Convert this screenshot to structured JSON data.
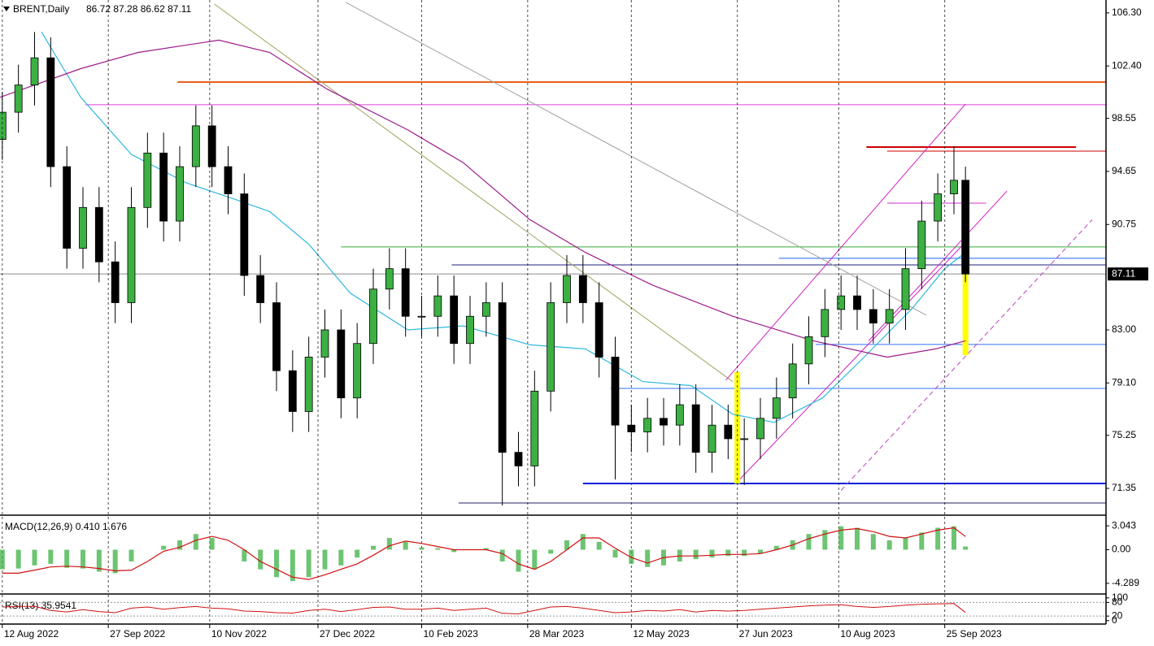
{
  "chart_data": {
    "type": "candlestick",
    "title": "BRENT,Daily",
    "ohlc_readout": "86.72 87.28 86.62 87.11",
    "x": [
      "2022-08-12",
      "2022-08-19",
      "2022-08-26",
      "2022-09-02",
      "2022-09-09",
      "2022-09-16",
      "2022-09-23",
      "2022-09-30",
      "2022-10-07",
      "2022-10-14",
      "2022-10-21",
      "2022-10-28",
      "2022-11-04",
      "2022-11-11",
      "2022-11-18",
      "2022-11-25",
      "2022-12-02",
      "2022-12-09",
      "2022-12-16",
      "2022-12-23",
      "2022-12-30",
      "2023-01-06",
      "2023-01-13",
      "2023-01-20",
      "2023-01-27",
      "2023-02-03",
      "2023-02-10",
      "2023-02-17",
      "2023-02-24",
      "2023-03-03",
      "2023-03-10",
      "2023-03-17",
      "2023-03-24",
      "2023-03-31",
      "2023-04-07",
      "2023-04-14",
      "2023-04-21",
      "2023-04-28",
      "2023-05-05",
      "2023-05-12",
      "2023-05-19",
      "2023-05-26",
      "2023-06-02",
      "2023-06-09",
      "2023-06-16",
      "2023-06-23",
      "2023-06-30",
      "2023-07-07",
      "2023-07-14",
      "2023-07-21",
      "2023-07-28",
      "2023-08-04",
      "2023-08-11",
      "2023-08-18",
      "2023-08-25",
      "2023-09-01",
      "2023-09-08",
      "2023-09-15",
      "2023-09-22",
      "2023-09-29",
      "2023-10-04"
    ],
    "open": [
      97,
      99,
      101,
      103,
      95,
      89,
      92,
      88,
      85,
      92,
      96,
      91,
      95,
      98,
      95,
      93,
      87,
      85,
      80,
      77,
      81,
      83,
      78,
      82,
      86,
      87.5,
      84,
      84,
      85.5,
      82,
      84,
      85,
      74,
      73,
      78.5,
      85,
      87,
      85,
      81,
      76,
      75.5,
      76.5,
      76,
      77.5,
      74,
      76,
      75,
      75,
      76.5,
      78,
      80.5,
      82.5,
      84.5,
      85.5,
      84.5,
      83.5,
      84.5,
      87.5,
      91,
      93,
      94
    ],
    "high": [
      100.5,
      102.5,
      104.9,
      104.5,
      96.5,
      93.5,
      93.5,
      89.5,
      93.5,
      97.5,
      97.5,
      96.5,
      99.5,
      99.5,
      96.5,
      94.5,
      88.5,
      86.5,
      81.5,
      82.5,
      84.5,
      84.5,
      83.5,
      87.5,
      89,
      89,
      85.5,
      87,
      87,
      85.5,
      86.5,
      86.5,
      75.5,
      80,
      86.5,
      88.5,
      88.5,
      86.5,
      82.5,
      77.5,
      78,
      78,
      79,
      79,
      77.5,
      77.5,
      76.5,
      78,
      79.5,
      82,
      84,
      86,
      87,
      87,
      86,
      86,
      89,
      92.5,
      94.5,
      96.5,
      95
    ],
    "low": [
      95.5,
      97.5,
      99.5,
      93.5,
      87.5,
      87.5,
      86.5,
      83.5,
      83.5,
      90.5,
      89.5,
      89.5,
      93.5,
      93.5,
      91.5,
      85.5,
      83.5,
      78.5,
      75.5,
      75.5,
      79.5,
      76.5,
      76.5,
      80.5,
      84.5,
      82.5,
      82.5,
      82.5,
      80.5,
      80.5,
      82.5,
      70.1,
      71.5,
      71.5,
      77,
      83.5,
      83.5,
      79.5,
      72,
      74,
      74,
      74.5,
      74.5,
      72.5,
      72.5,
      73.5,
      71.6,
      73.5,
      75,
      76.5,
      79,
      81,
      83,
      83,
      82,
      82,
      83,
      86,
      89.5,
      91.5,
      86.5
    ],
    "close": [
      99,
      101,
      103,
      95,
      89,
      92,
      88,
      85,
      92,
      96,
      91,
      95,
      98,
      95,
      93,
      87,
      85,
      80,
      77,
      81,
      83,
      78,
      82,
      86,
      87.5,
      84,
      84,
      85.5,
      82,
      84,
      85,
      74,
      73,
      78.5,
      85,
      87,
      85,
      81,
      76,
      75.5,
      76.5,
      76,
      77.5,
      74,
      76,
      75,
      75,
      76.5,
      78,
      80.5,
      82.5,
      84.5,
      85.5,
      84.5,
      83.5,
      84.5,
      87.5,
      91,
      93,
      94,
      87.11
    ],
    "up_color": "#3cb043",
    "down_color": "#000000",
    "xlim": [
      "2022-08-11",
      "2023-12-04"
    ],
    "xticks": [
      {
        "value": "2022-08-12",
        "label": "12 Aug 2022"
      },
      {
        "value": "2022-09-27",
        "label": "27 Sep 2022"
      },
      {
        "value": "2022-11-10",
        "label": "10 Nov 2022"
      },
      {
        "value": "2022-12-27",
        "label": "27 Dec 2022"
      },
      {
        "value": "2023-02-10",
        "label": "10 Feb 2023"
      },
      {
        "value": "2023-03-28",
        "label": "28 Mar 2023"
      },
      {
        "value": "2023-05-12",
        "label": "12 May 2023"
      },
      {
        "value": "2023-06-27",
        "label": "27 Jun 2023"
      },
      {
        "value": "2023-08-10",
        "label": "10 Aug 2023"
      },
      {
        "value": "2023-09-25",
        "label": "25 Sep 2023"
      }
    ],
    "ylim": [
      69.5,
      107.25
    ],
    "yticks": [
      {
        "value": 106.3,
        "label": "106.30"
      },
      {
        "value": 102.4,
        "label": "102.40"
      },
      98.55,
      94.65,
      90.75,
      {
        "value": 83,
        "label": "83.00"
      },
      {
        "value": 79.1,
        "label": "79.10"
      },
      75.25,
      71.35
    ],
    "grid": true,
    "current_price": 87.11,
    "moving_averages": [
      {
        "color": "#2fb8e0",
        "x": [
          "2022-08-29",
          "2022-09-15",
          "2022-10-07",
          "2022-10-31",
          "2022-11-21",
          "2022-12-06",
          "2022-12-23",
          "2023-01-10",
          "2023-02-04",
          "2023-02-28",
          "2023-03-29",
          "2023-04-22",
          "2023-05-17",
          "2023-06-07",
          "2023-06-25",
          "2023-07-13",
          "2023-08-03",
          "2023-08-21",
          "2023-09-11",
          "2023-09-25",
          "2023-10-04"
        ],
        "values": [
          104.9,
          100.1,
          95.9,
          93.8,
          92.6,
          91.7,
          89.3,
          85.7,
          83,
          83.3,
          81.9,
          81.6,
          79.2,
          78.9,
          76.8,
          76.2,
          78,
          81,
          84.6,
          87.5,
          88.7
        ]
      },
      {
        "color": "#9c1c8c",
        "x": [
          "2022-08-11",
          "2022-09-15",
          "2022-10-10",
          "2022-11-14",
          "2022-12-06",
          "2022-12-31",
          "2023-02-04",
          "2023-02-28",
          "2023-03-29",
          "2023-04-22",
          "2023-05-21",
          "2023-06-25",
          "2023-07-30",
          "2023-08-31",
          "2023-09-21",
          "2023-10-04"
        ],
        "values": [
          100.1,
          102.2,
          103.4,
          104.3,
          103.4,
          100.7,
          97.7,
          95.3,
          91.1,
          88.7,
          86.3,
          84,
          82.2,
          81,
          81.6,
          82.2
        ]
      }
    ],
    "horizontal_lines": [
      {
        "value": 101.22,
        "from": "2022-10-27",
        "color": "#e8601c",
        "style": "thick"
      },
      {
        "value": 99.55,
        "from": "2022-09-17",
        "color": "#e040e0",
        "style": "thin"
      },
      {
        "value": 96.44,
        "from": "2023-08-22",
        "to": "2023-11-21",
        "color": "#cc0000",
        "style": "thick"
      },
      {
        "value": 96.14,
        "from": "2023-08-31",
        "color": "#cc0000",
        "style": "thin"
      },
      {
        "value": 92.32,
        "from": "2023-08-31",
        "to": "2023-10-13",
        "color": "#cc33cc",
        "style": "thin"
      },
      {
        "value": 89.1,
        "from": "2023-01-06",
        "color": "#33aa33",
        "style": "thin"
      },
      {
        "value": 88.26,
        "from": "2023-07-15",
        "color": "#2060ff",
        "style": "thin"
      },
      {
        "value": 87.78,
        "from": "2023-02-23",
        "color": "#202080",
        "style": "thin"
      },
      {
        "value": 81.93,
        "from": "2023-07-31",
        "color": "#3070ff",
        "style": "thin"
      },
      {
        "value": 78.7,
        "from": "2023-05-03",
        "color": "#3070ff",
        "style": "thin"
      },
      {
        "value": 71.71,
        "from": "2023-04-21",
        "color": "#0020e0",
        "style": "thick"
      },
      {
        "value": 70.28,
        "from": "2023-02-26",
        "color": "#202060",
        "style": "thin"
      }
    ],
    "trend_lines": [
      {
        "x": [
          "2022-11-12",
          "2023-06-25"
        ],
        "values": [
          106.96,
          79.2
        ],
        "color": "#a0a060",
        "style": "thin"
      },
      {
        "x": [
          "2023-01-08",
          "2023-09-17"
        ],
        "values": [
          107.08,
          84.08
        ],
        "color": "#a0a0a0",
        "style": "thin"
      },
      {
        "x": [
          "2023-06-27",
          "2023-10-04"
        ],
        "values": [
          71.83,
          89.45
        ],
        "color": "#d020c0",
        "style": "thin"
      },
      {
        "x": [
          "2023-06-22",
          "2023-10-04"
        ],
        "values": [
          79.3,
          99.6
        ],
        "color": "#d020c0",
        "style": "thin"
      },
      {
        "x": [
          "2023-08-23",
          "2023-10-22"
        ],
        "values": [
          82.2,
          93.2
        ],
        "color": "#d020c0",
        "style": "thin"
      },
      {
        "x": [
          "2023-08-11",
          "2023-11-28"
        ],
        "values": [
          71.2,
          91.1
        ],
        "color": "#c040c0",
        "style": "dashed"
      }
    ],
    "highlights": [
      {
        "x": "2023-06-27",
        "values": [
          79.9,
          71.7
        ],
        "color": "#ffff00"
      },
      {
        "x": "2023-10-04",
        "values": [
          89.75,
          81.15
        ],
        "color": "#ffff00"
      }
    ],
    "panels": [
      {
        "type": "macd",
        "title": "MACD(12,26,9) 0.410 1.676",
        "ylim": [
          -5.34,
          4.2
        ],
        "yticks": [
          3.043,
          {
            "value": 0,
            "label": "0.00"
          },
          -4.289
        ],
        "histogram": {
          "color": "#3cb043",
          "values": [
            -2.5,
            -2.4,
            -2,
            -1.8,
            -2.3,
            -2.4,
            -2.8,
            -3,
            -1.5,
            0,
            0.5,
            1.2,
            2,
            1.5,
            0,
            -1.5,
            -2.5,
            -3.5,
            -4,
            -3.5,
            -2.5,
            -2,
            -1,
            0.5,
            1.5,
            1,
            0.3,
            0.2,
            -0.3,
            0,
            0.2,
            -1.5,
            -2.8,
            -2.5,
            -0.5,
            1.2,
            2,
            1,
            -1,
            -1.8,
            -2.2,
            -2,
            -1.5,
            -1.2,
            -1,
            -0.8,
            -0.8,
            -0.5,
            0.5,
            1.2,
            2,
            2.5,
            3,
            2.8,
            2,
            1.2,
            1.5,
            2.2,
            2.8,
            3,
            0.41
          ]
        },
        "signal": {
          "color": "#d01010",
          "values": [
            -3,
            -3,
            -2.6,
            -2.2,
            -2.1,
            -2.2,
            -2.4,
            -2.7,
            -2.6,
            -1.5,
            -0.2,
            0.3,
            1.2,
            1.7,
            1.2,
            0,
            -1.5,
            -2.5,
            -3.5,
            -3.8,
            -3.2,
            -2.5,
            -1.8,
            -0.7,
            0.5,
            1.1,
            0.8,
            0.4,
            0,
            0,
            0,
            -0.5,
            -1.8,
            -2.5,
            -1.5,
            0,
            1.5,
            1.5,
            0.2,
            -1,
            -1.7,
            -1,
            -0.8,
            -0.8,
            -0.7,
            -0.6,
            -0.6,
            -0.5,
            0,
            0.6,
            1.4,
            2,
            2.5,
            2.7,
            2.3,
            1.7,
            1.5,
            2,
            2.5,
            2.8,
            1.676
          ]
        }
      },
      {
        "type": "rsi",
        "title": "RSI(13) 35.9541",
        "ylim": [
          -8,
          110
        ],
        "yticks": [
          100,
          80,
          20,
          0
        ],
        "color": "#d01010",
        "values": [
          60,
          62,
          63,
          45,
          38,
          48,
          40,
          35,
          55,
          60,
          50,
          57,
          62,
          55,
          52,
          42,
          40,
          35,
          33,
          45,
          50,
          40,
          48,
          58,
          60,
          50,
          50,
          55,
          45,
          50,
          55,
          32,
          30,
          45,
          60,
          62,
          55,
          45,
          35,
          38,
          45,
          42,
          48,
          38,
          45,
          42,
          45,
          50,
          55,
          60,
          65,
          68,
          70,
          62,
          58,
          62,
          68,
          72,
          74,
          75,
          35.9541
        ]
      }
    ]
  }
}
